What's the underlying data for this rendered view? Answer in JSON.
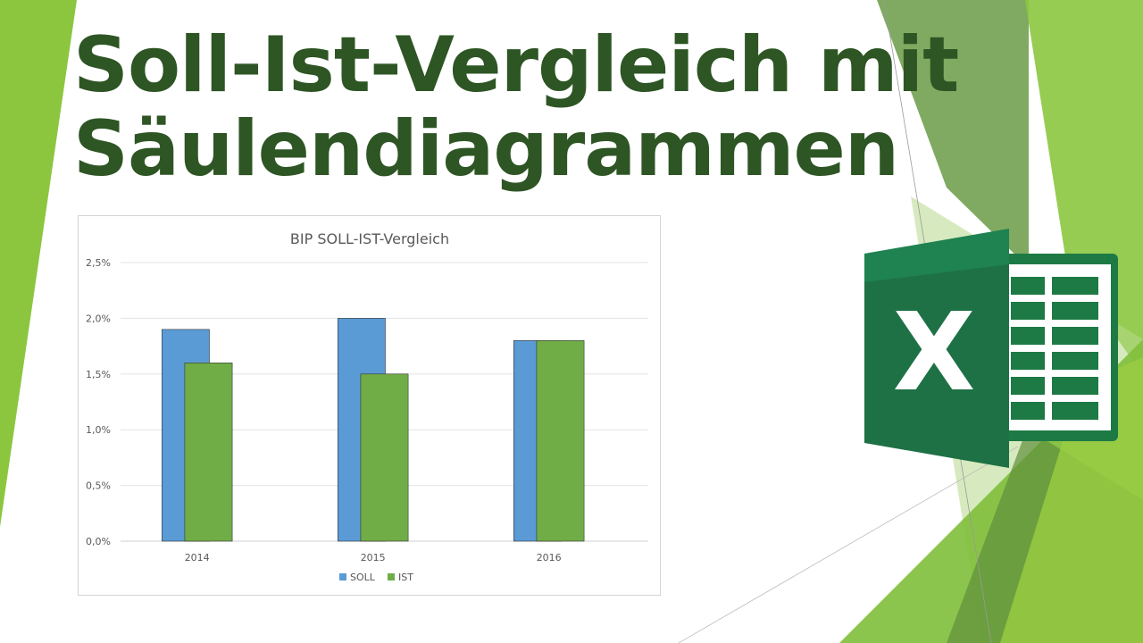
{
  "headline": {
    "line1": "Soll-Ist-Vergleich mit",
    "line2": "Säulendiagrammen"
  },
  "logo": {
    "icon": "excel-icon",
    "letter": "X",
    "colors": {
      "dark": "#1d6b40",
      "medium": "#21a366",
      "light": "#107c41",
      "sheet": "#ffffff"
    }
  },
  "theme": {
    "accent_green": "#8cc63f",
    "dark_green": "#2e5524",
    "mid_green": "#5f8f3a"
  },
  "chart_data": {
    "type": "bar",
    "title": "BIP SOLL-IST-Vergleich",
    "categories": [
      "2014",
      "2015",
      "2016"
    ],
    "series": [
      {
        "name": "SOLL",
        "values": [
          1.9,
          2.0,
          1.8
        ],
        "color": "#5b9bd5"
      },
      {
        "name": "IST",
        "values": [
          1.6,
          1.5,
          1.8
        ],
        "color": "#70ad47"
      }
    ],
    "ylim": [
      0,
      2.5
    ],
    "yticks": [
      0,
      0.5,
      1.0,
      1.5,
      2.0,
      2.5
    ],
    "ytick_labels": [
      "0,0%",
      "0,5%",
      "1,0%",
      "1,5%",
      "2,0%",
      "2,5%"
    ],
    "xlabel": "",
    "ylabel": "",
    "grid": true,
    "legend": "bottom",
    "overlap": "IST column overlaps SOLL column"
  }
}
